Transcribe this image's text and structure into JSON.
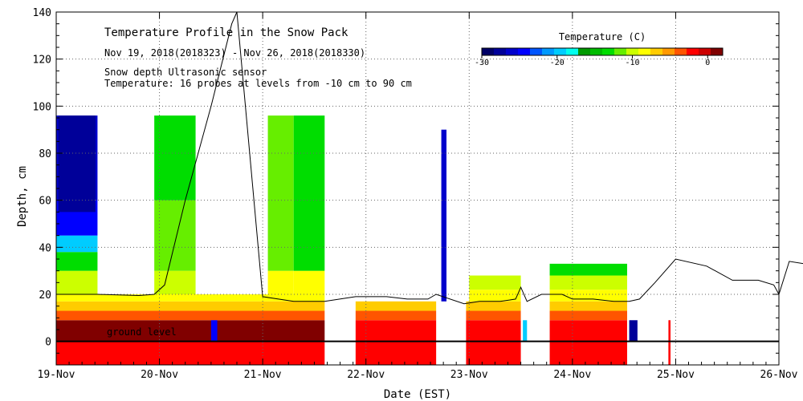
{
  "chart_data": {
    "type": "heatmap",
    "title": "Temperature Profile in the Snow Pack",
    "subtitle": "Nov 19, 2018(2018323) - Nov 26, 2018(2018330)",
    "annotations": [
      "Snow depth  Ultrasonic sensor",
      "Temperature: 16 probes at levels from -10 cm to 90 cm"
    ],
    "ground_label": "ground level",
    "xlabel": "Date (EST)",
    "ylabel": "Depth, cm",
    "x_ticks": [
      "19-Nov",
      "20-Nov",
      "21-Nov",
      "22-Nov",
      "23-Nov",
      "24-Nov",
      "25-Nov",
      "26-Nov"
    ],
    "xlim": [
      0,
      7
    ],
    "ylim": [
      -10,
      140
    ],
    "y_ticks": [
      0,
      20,
      40,
      60,
      80,
      100,
      120,
      140
    ],
    "grid": true,
    "colorbar": {
      "title": "Temperature (C)",
      "range": [
        -30,
        2
      ],
      "tick_values": [
        -30,
        -20,
        -10,
        0
      ],
      "tick_labels": [
        "-30",
        "-20",
        "-10",
        "0"
      ],
      "colors": [
        "#000066",
        "#000099",
        "#0000cc",
        "#0000ff",
        "#0055ff",
        "#0099ff",
        "#00ccff",
        "#00ffee",
        "#009900",
        "#00bb00",
        "#00dd00",
        "#66ee00",
        "#ccff00",
        "#ffff00",
        "#ffcc00",
        "#ff9900",
        "#ff5500",
        "#ff0000",
        "#cc0000",
        "#800000"
      ]
    },
    "gaps": [
      [
        2.6,
        2.9
      ],
      [
        3.68,
        3.97
      ],
      [
        4.5,
        4.78
      ],
      [
        5.53,
        5.93
      ]
    ],
    "snow_depth": {
      "x": [
        0.0,
        0.4,
        0.8,
        0.95,
        1.05,
        1.25,
        1.5,
        1.7,
        1.75,
        2.0,
        2.3,
        2.6,
        2.9,
        3.2,
        3.4,
        3.5,
        3.6,
        3.68,
        3.95,
        4.1,
        4.3,
        4.45,
        4.5,
        4.56,
        4.7,
        4.9,
        5.0,
        5.2,
        5.4,
        5.55,
        5.65,
        5.8,
        6.0,
        6.3,
        6.55,
        6.8,
        6.95,
        7.0,
        7.1,
        7.25
      ],
      "y": [
        20,
        20,
        19.5,
        20,
        24,
        60,
        100,
        135,
        140,
        19,
        17,
        17,
        19,
        19,
        18,
        18,
        18,
        20,
        16,
        17,
        17,
        18,
        23,
        17,
        20,
        20,
        18,
        18,
        17,
        17,
        18,
        25,
        35,
        32,
        26,
        26,
        24,
        20,
        34,
        33
      ]
    }
  }
}
